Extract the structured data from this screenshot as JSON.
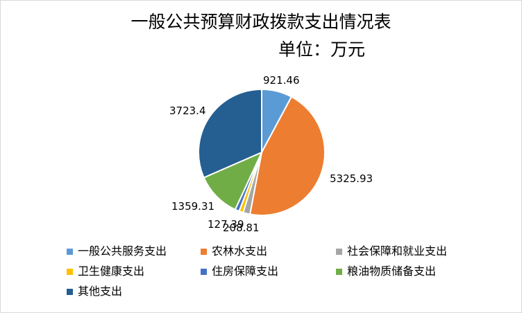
{
  "chart_data": {
    "type": "pie",
    "title": "一般公共预算财政拨款支出情况表",
    "subtitle": "单位：万元",
    "legend_position": "bottom",
    "series": [
      {
        "categories": [
          "一般公共服务支出",
          "农林水支出",
          "社会保障和就业支出",
          "卫生健康支出",
          "住房保障支出",
          "粮油物质储备支出",
          "其他支出"
        ],
        "values": [
          921.46,
          5325.93,
          208.81,
          127.39,
          127.39,
          1359.31,
          3723.4
        ],
        "data_labels": [
          "921.46",
          "5325.93",
          "208.81",
          "127.39",
          "",
          "1359.31",
          "3723.4"
        ],
        "colors": [
          "#5B9BD5",
          "#ED7D31",
          "#A5A5A5",
          "#FFC000",
          "#4472C4",
          "#70AD47",
          "#255E91"
        ]
      }
    ]
  }
}
